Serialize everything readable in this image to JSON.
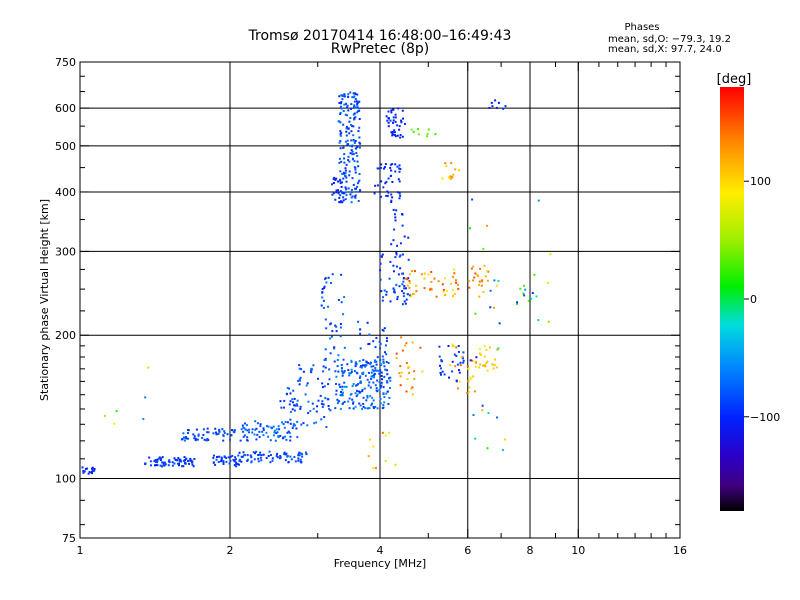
{
  "chart_data": {
    "type": "scatter",
    "title": "Tromsø 20170414 16:48:00–16:49:43",
    "subtitle": "RwPretec (8p)",
    "stats": {
      "heading": "Phases",
      "line1": "mean, sd,O: −79.3, 19.2",
      "line2": "mean, sd,X:  97.7, 24.0"
    },
    "xlabel": "Frequency [MHz]",
    "ylabel": "Stationary phase Virtual Height [km]",
    "x_scale": "log",
    "y_scale": "log",
    "xlim": [
      1,
      16
    ],
    "ylim": [
      75,
      750
    ],
    "x_ticks": [
      {
        "v": 1,
        "label": "1"
      },
      {
        "v": 2,
        "label": "2"
      },
      {
        "v": 4,
        "label": "4"
      },
      {
        "v": 6,
        "label": "6"
      },
      {
        "v": 8,
        "label": "8"
      },
      {
        "v": 10,
        "label": "10"
      },
      {
        "v": 16,
        "label": "16"
      }
    ],
    "y_ticks": [
      {
        "v": 75,
        "label": "75"
      },
      {
        "v": 100,
        "label": "100"
      },
      {
        "v": 200,
        "label": "200"
      },
      {
        "v": 300,
        "label": "300"
      },
      {
        "v": 400,
        "label": "400"
      },
      {
        "v": 500,
        "label": "500"
      },
      {
        "v": 600,
        "label": "600"
      },
      {
        "v": 750,
        "label": "750"
      }
    ],
    "x_major_grid": [
      2,
      4,
      6,
      8,
      10
    ],
    "y_major_grid": [
      100,
      200,
      300,
      400,
      500,
      600
    ],
    "grid": true,
    "colorbar": {
      "label": "[deg]",
      "min": -180,
      "max": 180,
      "ticks": [
        {
          "v": 100,
          "label": "100"
        },
        {
          "v": 0,
          "label": "0"
        },
        {
          "v": -100,
          "label": "−100"
        }
      ]
    },
    "clusters": [
      {
        "f": [
          1.0,
          1.07
        ],
        "h": [
          102,
          106
        ],
        "phase": [
          -110,
          -90
        ],
        "n": 18
      },
      {
        "f": [
          1.35,
          1.7
        ],
        "h": [
          106,
          111
        ],
        "phase": [
          -105,
          -80
        ],
        "n": 70
      },
      {
        "f": [
          1.6,
          2.05
        ],
        "h": [
          120,
          128
        ],
        "phase": [
          -100,
          -70
        ],
        "n": 55
      },
      {
        "f": [
          1.85,
          2.1
        ],
        "h": [
          106,
          112
        ],
        "phase": [
          -105,
          -75
        ],
        "n": 40
      },
      {
        "f": [
          2.05,
          2.85
        ],
        "h": [
          108,
          114
        ],
        "phase": [
          -100,
          -70
        ],
        "n": 70
      },
      {
        "f": [
          2.1,
          2.75
        ],
        "h": [
          120,
          132
        ],
        "phase": [
          -95,
          -55
        ],
        "n": 75
      },
      {
        "f": [
          2.5,
          2.85
        ],
        "h": [
          138,
          146
        ],
        "phase": [
          -110,
          -80
        ],
        "n": 12
      },
      {
        "f": [
          2.6,
          3.2
        ],
        "h": [
          128,
          175
        ],
        "phase": [
          -100,
          -60
        ],
        "n": 70
      },
      {
        "f": [
          3.05,
          3.4
        ],
        "h": [
          175,
          270
        ],
        "phase": [
          -100,
          -60
        ],
        "n": 45
      },
      {
        "f": [
          3.25,
          4.2
        ],
        "h": [
          140,
          178
        ],
        "phase": [
          -95,
          -50
        ],
        "n": 190
      },
      {
        "f": [
          3.6,
          4.2
        ],
        "h": [
          160,
          215
        ],
        "phase": [
          -105,
          -70
        ],
        "n": 40
      },
      {
        "f": [
          3.3,
          3.65
        ],
        "h": [
          380,
          650
        ],
        "phase": [
          -100,
          -65
        ],
        "n": 190
      },
      {
        "f": [
          3.2,
          3.4
        ],
        "h": [
          380,
          430
        ],
        "phase": [
          -110,
          -90
        ],
        "n": 25
      },
      {
        "f": [
          3.9,
          4.4
        ],
        "h": [
          380,
          460
        ],
        "phase": [
          -110,
          -85
        ],
        "n": 45
      },
      {
        "f": [
          4.1,
          4.5
        ],
        "h": [
          520,
          600
        ],
        "phase": [
          -110,
          -90
        ],
        "n": 40
      },
      {
        "f": [
          4.0,
          4.6
        ],
        "h": [
          230,
          300
        ],
        "phase": [
          -110,
          -75
        ],
        "n": 55
      },
      {
        "f": [
          4.2,
          4.6
        ],
        "h": [
          300,
          370
        ],
        "phase": [
          -110,
          -90
        ],
        "n": 15
      },
      {
        "f": [
          4.3,
          4.9
        ],
        "h": [
          150,
          200
        ],
        "phase": [
          90,
          160
        ],
        "n": 25
      },
      {
        "f": [
          4.5,
          5.8
        ],
        "h": [
          240,
          275
        ],
        "phase": [
          80,
          160
        ],
        "n": 45
      },
      {
        "f": [
          5.2,
          5.9
        ],
        "h": [
          160,
          190
        ],
        "phase": [
          -105,
          -80
        ],
        "n": 30
      },
      {
        "f": [
          5.3,
          5.8
        ],
        "h": [
          420,
          460
        ],
        "phase": [
          95,
          140
        ],
        "n": 12
      },
      {
        "f": [
          5.5,
          6.3
        ],
        "h": [
          150,
          195
        ],
        "phase": [
          70,
          150
        ],
        "n": 22
      },
      {
        "f": [
          6.0,
          6.6
        ],
        "h": [
          240,
          280
        ],
        "phase": [
          100,
          160
        ],
        "n": 22
      },
      {
        "f": [
          6.2,
          6.9
        ],
        "h": [
          170,
          190
        ],
        "phase": [
          85,
          120
        ],
        "n": 22
      },
      {
        "f": [
          6.5,
          7.2
        ],
        "h": [
          595,
          625
        ],
        "phase": [
          -110,
          -90
        ],
        "n": 8
      },
      {
        "f": [
          7.5,
          8.3
        ],
        "h": [
          230,
          270
        ],
        "phase": [
          -120,
          40
        ],
        "n": 12
      },
      {
        "f": [
          4.6,
          5.2
        ],
        "h": [
          520,
          545
        ],
        "phase": [
          20,
          50
        ],
        "n": 8
      },
      {
        "f": [
          6.0,
          7.2
        ],
        "h": [
          100,
          400
        ],
        "phase": [
          -120,
          150
        ],
        "n": 25
      },
      {
        "f": [
          1.1,
          1.5
        ],
        "h": [
          125,
          230
        ],
        "phase": [
          -110,
          160
        ],
        "n": 6
      },
      {
        "f": [
          3.7,
          4.3
        ],
        "h": [
          105,
          125
        ],
        "phase": [
          60,
          150
        ],
        "n": 10
      },
      {
        "f": [
          8.3,
          8.8
        ],
        "h": [
          210,
          400
        ],
        "phase": [
          -120,
          140
        ],
        "n": 5
      }
    ]
  }
}
